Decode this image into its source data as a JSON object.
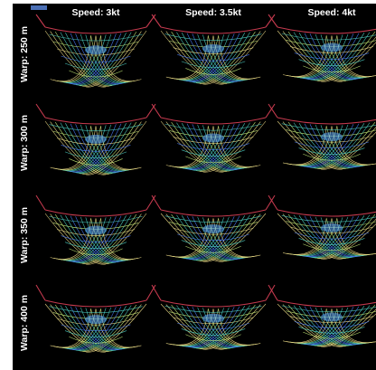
{
  "columns": [
    {
      "label": "Speed: 3kt"
    },
    {
      "label": "Speed: 3.5kt"
    },
    {
      "label": "Speed: 4kt"
    }
  ],
  "rows": [
    {
      "label": "Warp: 250 m"
    },
    {
      "label": "Warp: 300 m"
    },
    {
      "label": "Warp: 350 m"
    },
    {
      "label": "Warp: 400 m"
    }
  ],
  "colors": {
    "background": "#000000",
    "rope": "#c43a4e",
    "mesh_inner": "#4a7dff",
    "mesh_mid": "#4fd1c5",
    "mesh_outer": "#c8f07a",
    "mesh_edge": "#f2e08a"
  }
}
